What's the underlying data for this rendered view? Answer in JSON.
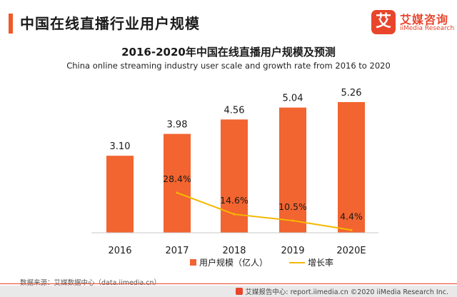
{
  "header": {
    "title": "中国在线直播行业用户规模",
    "logo_mark": "艾",
    "logo_cn": "艾媒咨询",
    "logo_en": "iiMedia Research"
  },
  "chart_data": {
    "type": "bar",
    "title": "2016-2020年中国在线直播用户规模及预测",
    "subtitle": "China online streaming industry user scale and growth rate from 2016 to 2020",
    "categories": [
      "2016",
      "2017",
      "2018",
      "2019",
      "2020E"
    ],
    "series": [
      {
        "name": "用户规模（亿人）",
        "type": "bar",
        "color": "#f26430",
        "values": [
          3.1,
          3.98,
          4.56,
          5.04,
          5.26
        ],
        "labels": [
          "3.10",
          "3.98",
          "4.56",
          "5.04",
          "5.26"
        ]
      },
      {
        "name": "增长率",
        "type": "line",
        "color": "#f5b800",
        "values": [
          null,
          28.4,
          14.6,
          10.5,
          4.4
        ],
        "labels": [
          "",
          "28.4%",
          "14.6%",
          "10.5%",
          "4.4%"
        ]
      }
    ],
    "ylim_bars": [
      0,
      5.26
    ],
    "ylim_line": [
      0,
      40
    ],
    "grid": false,
    "legend_position": "bottom-center"
  },
  "source": "数据来源：艾媒数据中心（data.iimedia.cn）",
  "footer": {
    "text": "艾媒报告中心: report.iimedia.cn  ©2020  iiMedia Research  Inc."
  }
}
